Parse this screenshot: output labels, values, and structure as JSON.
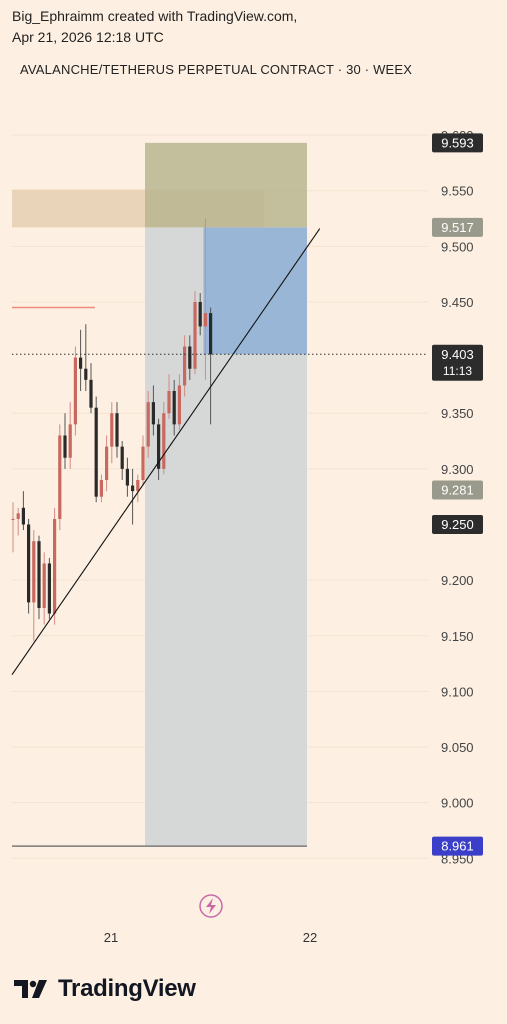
{
  "header": {
    "line1": "Big_Ephraimm created with TradingView.com,",
    "line2": "Apr 21, 2026 12:18 UTC"
  },
  "chart_data": {
    "type": "candlestick",
    "title": "AVALANCHE/TETHERUS PERPETUAL CONTRACT · 30 · WEEX",
    "y_ticks": [
      9.6,
      9.55,
      9.5,
      9.45,
      9.35,
      9.3,
      9.2,
      9.15,
      9.1,
      9.05,
      9.0,
      8.95
    ],
    "y_tick_labels": [
      "9.600",
      "9.550",
      "9.500",
      "9.450",
      "9.350",
      "9.300",
      "9.200",
      "9.150",
      "9.100",
      "9.050",
      "9.000",
      "8.950"
    ],
    "ylim": [
      8.935,
      9.645
    ],
    "x_tick_labels": [
      "21",
      "22"
    ],
    "price_labels": [
      {
        "text": "9.593",
        "value": 9.593,
        "color": "#2c2c2c"
      },
      {
        "text": "9.517",
        "value": 9.517,
        "color": "#9a9a8c"
      },
      {
        "text": "9.403",
        "sub": "11:13",
        "value": 9.403,
        "color": "#2c2c2c"
      },
      {
        "text": "9.281",
        "value": 9.281,
        "color": "#9a9a8c"
      },
      {
        "text": "9.250",
        "value": 9.25,
        "color": "#2c2c2c"
      },
      {
        "text": "8.961",
        "value": 8.961,
        "color": "#3b3ec8"
      }
    ],
    "current_price": 9.403,
    "position": {
      "type": "long",
      "entry": 9.517,
      "target": 9.593,
      "stop": 8.961,
      "target_color": "#b9b58f",
      "stop_color": "#d3d6d6",
      "fill_color": "#8fb0d6"
    },
    "horizontal_zone": {
      "top": 9.551,
      "bottom": 9.517,
      "color": "#e6cfb2"
    },
    "red_level": 9.445,
    "trendline": {
      "from": [
        0,
        9.115
      ],
      "to": [
        59,
        9.516
      ]
    },
    "candles": [
      [
        9.255,
        9.27,
        9.225,
        9.255
      ],
      [
        9.255,
        9.265,
        9.24,
        9.26
      ],
      [
        9.265,
        9.28,
        9.245,
        9.25
      ],
      [
        9.25,
        9.255,
        9.17,
        9.18
      ],
      [
        9.18,
        9.245,
        9.145,
        9.235
      ],
      [
        9.235,
        9.24,
        9.165,
        9.175
      ],
      [
        9.175,
        9.225,
        9.16,
        9.215
      ],
      [
        9.215,
        9.22,
        9.165,
        9.17
      ],
      [
        9.17,
        9.265,
        9.16,
        9.255
      ],
      [
        9.255,
        9.34,
        9.245,
        9.33
      ],
      [
        9.33,
        9.35,
        9.3,
        9.31
      ],
      [
        9.31,
        9.36,
        9.3,
        9.34
      ],
      [
        9.34,
        9.41,
        9.33,
        9.4
      ],
      [
        9.4,
        9.425,
        9.37,
        9.39
      ],
      [
        9.39,
        9.43,
        9.37,
        9.38
      ],
      [
        9.38,
        9.395,
        9.35,
        9.355
      ],
      [
        9.355,
        9.365,
        9.27,
        9.275
      ],
      [
        9.275,
        9.295,
        9.27,
        9.29
      ],
      [
        9.29,
        9.33,
        9.28,
        9.32
      ],
      [
        9.32,
        9.36,
        9.305,
        9.35
      ],
      [
        9.35,
        9.36,
        9.31,
        9.32
      ],
      [
        9.32,
        9.325,
        9.29,
        9.3
      ],
      [
        9.3,
        9.31,
        9.275,
        9.285
      ],
      [
        9.285,
        9.3,
        9.25,
        9.28
      ],
      [
        9.28,
        9.295,
        9.27,
        9.29
      ],
      [
        9.29,
        9.33,
        9.285,
        9.32
      ],
      [
        9.32,
        9.37,
        9.31,
        9.36
      ],
      [
        9.36,
        9.375,
        9.33,
        9.34
      ],
      [
        9.34,
        9.345,
        9.29,
        9.3
      ],
      [
        9.3,
        9.36,
        9.295,
        9.35
      ],
      [
        9.35,
        9.385,
        9.345,
        9.37
      ],
      [
        9.37,
        9.38,
        9.33,
        9.34
      ],
      [
        9.34,
        9.385,
        9.335,
        9.375
      ],
      [
        9.375,
        9.42,
        9.365,
        9.41
      ],
      [
        9.41,
        9.42,
        9.38,
        9.39
      ],
      [
        9.39,
        9.46,
        9.385,
        9.45
      ],
      [
        9.45,
        9.458,
        9.42,
        9.428
      ],
      [
        9.428,
        9.525,
        9.38,
        9.44
      ],
      [
        9.44,
        9.445,
        9.34,
        9.403
      ]
    ]
  },
  "logo": {
    "text": "TradingView"
  },
  "icons": {
    "flash": "flash-icon",
    "logo": "tradingview-logo-icon"
  }
}
